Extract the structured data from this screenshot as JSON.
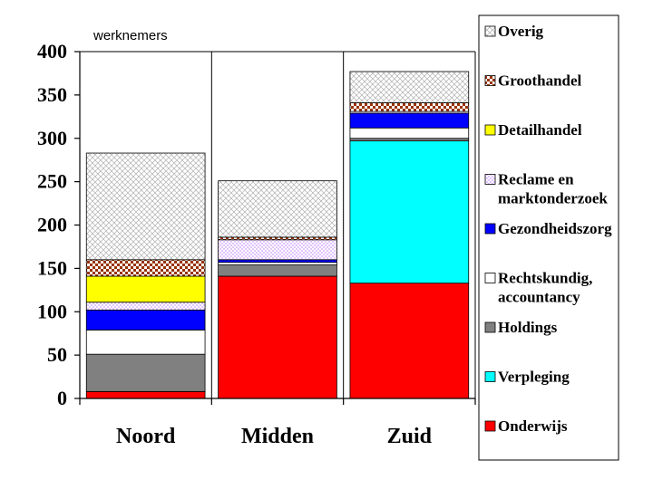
{
  "chart_data": {
    "type": "bar",
    "stacked": true,
    "title": "",
    "unit_label": "werknemers",
    "xlabel": "",
    "ylabel": "",
    "ylim": [
      0,
      400
    ],
    "yticks": [
      0,
      50,
      100,
      150,
      200,
      250,
      300,
      350,
      400
    ],
    "grid": "vertical category separators",
    "legend_position": "right",
    "categories": [
      "Noord",
      "Midden",
      "Zuid"
    ],
    "series": [
      {
        "name": "Onderwijs",
        "values": [
          8,
          141,
          133
        ],
        "color": "#ff0000",
        "pattern": "solid"
      },
      {
        "name": "Verpleging",
        "values": [
          0,
          0,
          164
        ],
        "color": "#00ffff",
        "pattern": "solid"
      },
      {
        "name": "Holdings",
        "values": [
          43,
          13,
          3
        ],
        "color": "#808080",
        "pattern": "solid"
      },
      {
        "name": "Rechtskundig, accountancy",
        "values": [
          28,
          3,
          12
        ],
        "color": "#ffffff",
        "pattern": "solid"
      },
      {
        "name": "Gezondheidszorg",
        "values": [
          23,
          3,
          17
        ],
        "color": "#0000ff",
        "pattern": "solid"
      },
      {
        "name": "Reclame en marktonderzoek",
        "values": [
          9,
          23,
          2
        ],
        "color": "#cc99ff",
        "pattern": "dots"
      },
      {
        "name": "Detailhandel",
        "values": [
          30,
          0,
          0
        ],
        "color": "#ffff00",
        "pattern": "solid"
      },
      {
        "name": "Groothandel",
        "values": [
          19,
          3,
          10
        ],
        "color": "#993300",
        "pattern": "checker"
      },
      {
        "name": "Overig",
        "values": [
          123,
          65,
          36
        ],
        "color": "#c0c0c0",
        "pattern": "crosshatch"
      }
    ],
    "legend_order": [
      "Overig",
      "Groothandel",
      "Detailhandel",
      "Reclame en marktonderzoek",
      "Gezondheidszorg",
      "Rechtskundig, accountancy",
      "Holdings",
      "Verpleging",
      "Onderwijs"
    ],
    "legend_lines": {
      "Overig": [
        "Overig"
      ],
      "Groothandel": [
        "Groothandel"
      ],
      "Detailhandel": [
        "Detailhandel"
      ],
      "Reclame en marktonderzoek": [
        "Reclame en",
        "marktonderzoek"
      ],
      "Gezondheidszorg": [
        "Gezondheidszorg"
      ],
      "Rechtskundig, accountancy": [
        "Rechtskundig,",
        "accountancy"
      ],
      "Holdings": [
        "Holdings"
      ],
      "Verpleging": [
        "Verpleging"
      ],
      "Onderwijs": [
        "Onderwijs"
      ]
    }
  }
}
